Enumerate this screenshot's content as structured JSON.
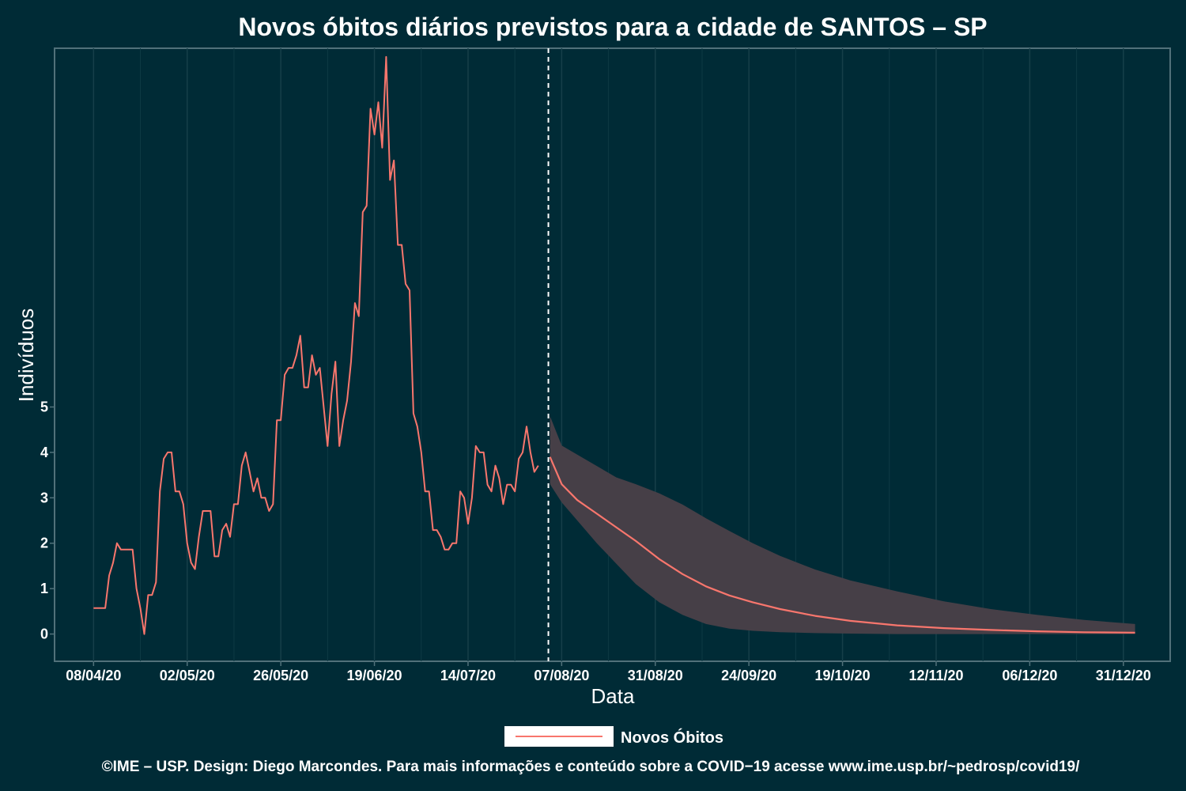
{
  "chart_data": {
    "type": "line",
    "title": "Novos óbitos diários previstos para a cidade de SANTOS – SP",
    "xlabel": "Data",
    "ylabel": "Indivíduos",
    "x_start": "2020-04-08",
    "x_end": "2020-12-31",
    "xlim": [
      "2020-03-29",
      "2021-01-09"
    ],
    "ylim": [
      -0.6,
      12.9
    ],
    "x_tick_labels": [
      "08/04/20",
      "02/05/20",
      "26/05/20",
      "19/06/20",
      "14/07/20",
      "07/08/20",
      "31/08/20",
      "24/09/20",
      "19/10/20",
      "12/11/20",
      "06/12/20",
      "31/12/20"
    ],
    "y_ticks": [
      0,
      1,
      2,
      3,
      4,
      5
    ],
    "forecast_start": "2020-08-03",
    "grid": true,
    "legend_position": "bottom",
    "series": [
      {
        "name": "Novos Óbitos",
        "color": "#f8766d",
        "observed": [
          0.57,
          0.57,
          0.57,
          0.57,
          1.29,
          1.57,
          2.0,
          1.86,
          1.86,
          1.86,
          1.86,
          1.0,
          0.57,
          0.0,
          0.86,
          0.86,
          1.14,
          3.14,
          3.86,
          4.0,
          4.0,
          3.14,
          3.14,
          2.86,
          2.0,
          1.57,
          1.43,
          2.14,
          2.71,
          2.71,
          2.71,
          1.71,
          1.71,
          2.29,
          2.43,
          2.14,
          2.86,
          2.86,
          3.71,
          4.0,
          3.57,
          3.14,
          3.43,
          3.0,
          3.0,
          2.71,
          2.86,
          4.71,
          4.71,
          5.71,
          5.86,
          5.86,
          6.14,
          6.57,
          5.43,
          5.43,
          6.14,
          5.71,
          5.86,
          5.0,
          4.14,
          5.29,
          6.0,
          4.14,
          4.71,
          5.14,
          6.0,
          7.29,
          7.0,
          9.29,
          9.43,
          11.57,
          11.0,
          11.71,
          10.71,
          12.71,
          10.0,
          10.43,
          8.57,
          8.57,
          7.71,
          7.57,
          4.86,
          4.57,
          4.0,
          3.14,
          3.14,
          2.29,
          2.29,
          2.14,
          1.86,
          1.86,
          2.0,
          2.0,
          3.14,
          3.0,
          2.43,
          3.0,
          4.14,
          4.0,
          4.0,
          3.29,
          3.14,
          3.71,
          3.43,
          2.86,
          3.29,
          3.29,
          3.14,
          3.86,
          4.0,
          4.57,
          4.0,
          3.57,
          3.71
        ],
        "forecast": [
          {
            "date": "2020-08-03",
            "mean": 3.9,
            "lower": 3.3,
            "upper": 4.8
          },
          {
            "date": "2020-08-06",
            "mean": 3.3,
            "lower": 2.9,
            "upper": 4.15
          },
          {
            "date": "2020-08-10",
            "mean": 2.95,
            "lower": 2.5,
            "upper": 3.95
          },
          {
            "date": "2020-08-15",
            "mean": 2.65,
            "lower": 2.0,
            "upper": 3.7
          },
          {
            "date": "2020-08-20",
            "mean": 2.35,
            "lower": 1.55,
            "upper": 3.45
          },
          {
            "date": "2020-08-25",
            "mean": 2.05,
            "lower": 1.1,
            "upper": 3.3
          },
          {
            "date": "2020-08-31",
            "mean": 1.65,
            "lower": 0.7,
            "upper": 3.1
          },
          {
            "date": "2020-09-06",
            "mean": 1.32,
            "lower": 0.42,
            "upper": 2.85
          },
          {
            "date": "2020-09-12",
            "mean": 1.05,
            "lower": 0.22,
            "upper": 2.55
          },
          {
            "date": "2020-09-18",
            "mean": 0.85,
            "lower": 0.12,
            "upper": 2.27
          },
          {
            "date": "2020-09-24",
            "mean": 0.7,
            "lower": 0.07,
            "upper": 2.0
          },
          {
            "date": "2020-10-01",
            "mean": 0.55,
            "lower": 0.04,
            "upper": 1.72
          },
          {
            "date": "2020-10-10",
            "mean": 0.4,
            "lower": 0.02,
            "upper": 1.42
          },
          {
            "date": "2020-10-19",
            "mean": 0.29,
            "lower": 0.01,
            "upper": 1.18
          },
          {
            "date": "2020-10-31",
            "mean": 0.19,
            "lower": 0.0,
            "upper": 0.94
          },
          {
            "date": "2020-11-12",
            "mean": 0.13,
            "lower": 0.0,
            "upper": 0.72
          },
          {
            "date": "2020-11-24",
            "mean": 0.09,
            "lower": 0.0,
            "upper": 0.55
          },
          {
            "date": "2020-12-06",
            "mean": 0.06,
            "lower": 0.0,
            "upper": 0.42
          },
          {
            "date": "2020-12-18",
            "mean": 0.04,
            "lower": 0.0,
            "upper": 0.31
          },
          {
            "date": "2020-12-31",
            "mean": 0.03,
            "lower": 0.0,
            "upper": 0.22
          }
        ]
      }
    ],
    "band_color": "#463f47"
  },
  "legend_label": "Novos Óbitos",
  "caption": "©IME – USP. Design: Diego Marcondes. Para mais informações e conteúdo sobre a COVID−19 acesse www.ime.usp.br/~pedrosp/covid19/"
}
